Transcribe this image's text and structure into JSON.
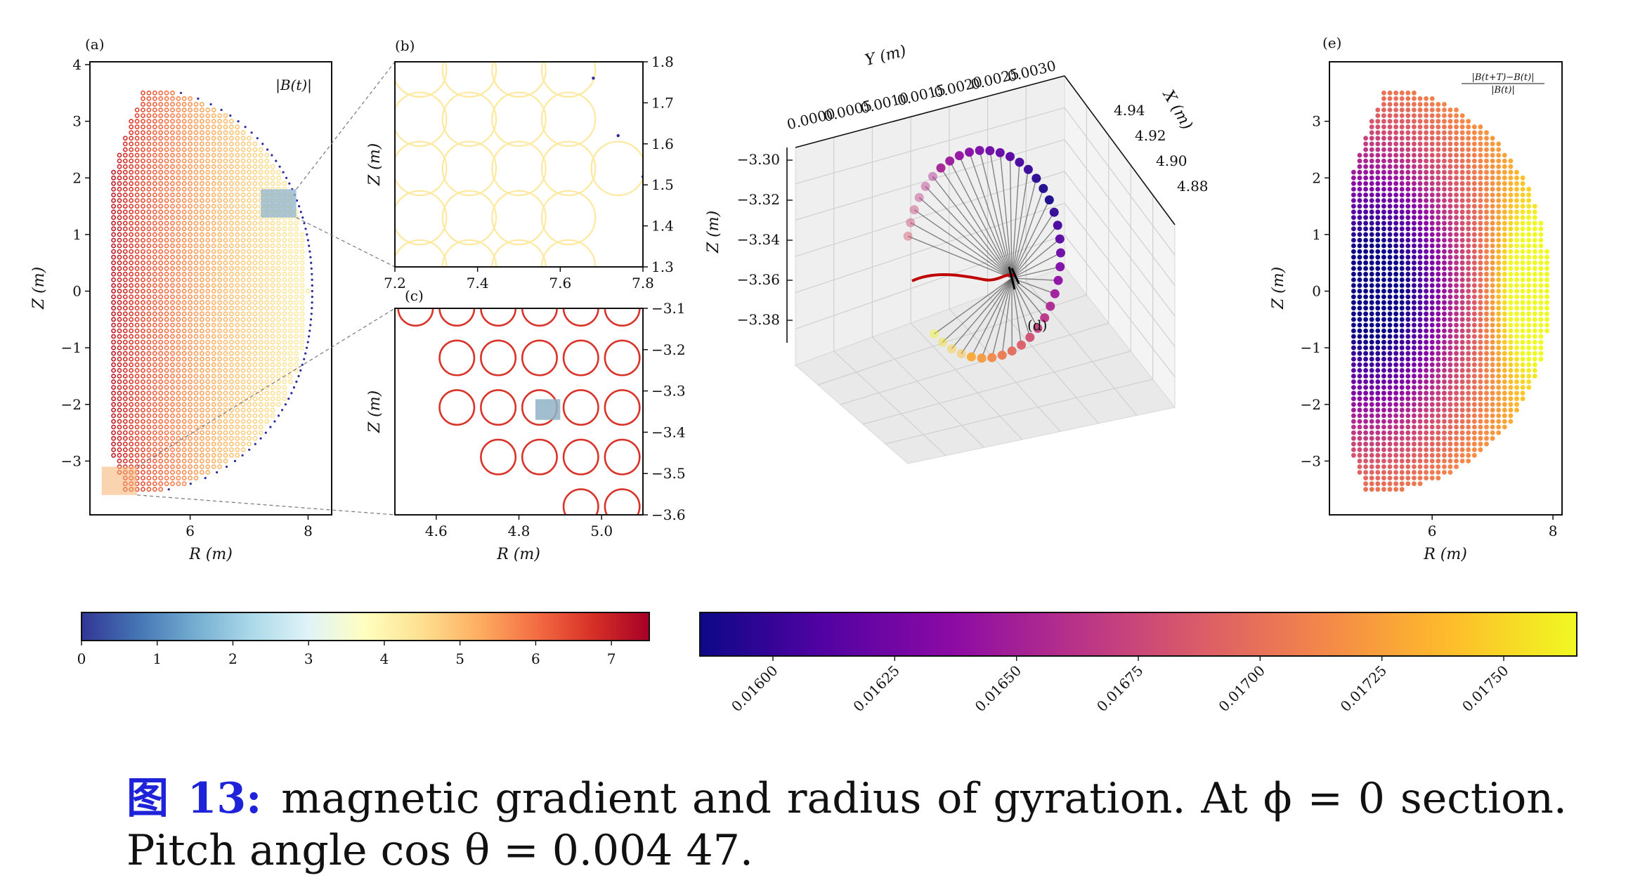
{
  "caption": {
    "label": "图 13:",
    "text": "magnetic gradient and radius of gyration. At ϕ = 0 section. Pitch angle cos θ = 0.004 47."
  },
  "colors": {
    "rdylbu_r": [
      "#313695",
      "#4575b4",
      "#74add1",
      "#abd9e9",
      "#e0f3f8",
      "#ffffbf",
      "#fee090",
      "#fdae61",
      "#f46d43",
      "#d73027",
      "#a50026"
    ],
    "plasma": [
      "#0d0887",
      "#5302a3",
      "#8b0aa5",
      "#b83289",
      "#db5c68",
      "#f48849",
      "#febd2a",
      "#f0f921"
    ],
    "box_b": "#8fb3c8",
    "box_c": "#f6b57a",
    "orbit_black": "#000000",
    "orbit_red": "#c00000"
  },
  "chart_data": [
    {
      "panel": "a",
      "type": "scatter",
      "annotation": "|B(t)|",
      "xlabel": "R (m)",
      "ylabel": "Z (m)",
      "xlim": [
        4.3,
        8.4
      ],
      "ylim": [
        -3.95,
        4.05
      ],
      "xticks": [
        6,
        8
      ],
      "yticks": [
        -3,
        -2,
        -1,
        0,
        1,
        2,
        3,
        4
      ],
      "colormap": "RdYlBu_r",
      "color_range": [
        0,
        7.5
      ],
      "grid_spacing_m": 0.1,
      "description_values": {
        "r_center": 5.0,
        "shape": "D-shaped cross-section, |B| decreasing with R",
        "B_inner": 7.0,
        "B_outer": 3.8
      },
      "inset_boxes": [
        {
          "name": "b",
          "r": [
            7.2,
            7.8
          ],
          "z": [
            1.3,
            1.8
          ]
        },
        {
          "name": "c",
          "r": [
            4.5,
            5.1
          ],
          "z": [
            -3.6,
            -3.1
          ]
        }
      ]
    },
    {
      "panel": "b",
      "type": "scatter",
      "xlabel": "",
      "ylabel": "Z (m)",
      "xlim": [
        7.2,
        7.8
      ],
      "ylim": [
        1.3,
        1.8
      ],
      "xticks": [
        7.2,
        7.4,
        7.6,
        7.8
      ],
      "yticks": [
        1.3,
        1.4,
        1.5,
        1.6,
        1.7,
        1.8
      ],
      "gyro_circle_radius_m": 0.065,
      "circle_centers": [
        [
          7.26,
          1.78
        ],
        [
          7.38,
          1.78
        ],
        [
          7.5,
          1.78
        ],
        [
          7.62,
          1.78
        ],
        [
          7.26,
          1.66
        ],
        [
          7.38,
          1.66
        ],
        [
          7.5,
          1.66
        ],
        [
          7.62,
          1.66
        ],
        [
          7.26,
          1.54
        ],
        [
          7.38,
          1.54
        ],
        [
          7.5,
          1.54
        ],
        [
          7.62,
          1.54
        ],
        [
          7.74,
          1.54
        ],
        [
          7.26,
          1.42
        ],
        [
          7.38,
          1.42
        ],
        [
          7.5,
          1.42
        ],
        [
          7.62,
          1.42
        ],
        [
          7.26,
          1.3
        ],
        [
          7.38,
          1.3
        ],
        [
          7.5,
          1.3
        ],
        [
          7.62,
          1.3
        ]
      ],
      "stray_points": [
        [
          7.68,
          1.76
        ],
        [
          7.74,
          1.62
        ],
        [
          7.8,
          1.52
        ]
      ],
      "field_value": 4.3
    },
    {
      "panel": "c",
      "type": "scatter",
      "xlabel": "R (m)",
      "ylabel": "Z (m)",
      "xlim": [
        4.5,
        5.1
      ],
      "ylim": [
        -3.6,
        -3.1
      ],
      "xticks": [
        4.6,
        4.8,
        5.0
      ],
      "yticks": [
        -3.1,
        -3.2,
        -3.3,
        -3.4,
        -3.5,
        -3.6
      ],
      "gyro_circle_radius_m": 0.042,
      "circle_centers": [
        [
          4.55,
          -3.1
        ],
        [
          4.65,
          -3.1
        ],
        [
          4.75,
          -3.1
        ],
        [
          4.85,
          -3.1
        ],
        [
          4.95,
          -3.1
        ],
        [
          5.05,
          -3.1
        ],
        [
          4.65,
          -3.22
        ],
        [
          4.75,
          -3.22
        ],
        [
          4.85,
          -3.22
        ],
        [
          4.95,
          -3.22
        ],
        [
          5.05,
          -3.22
        ],
        [
          4.65,
          -3.34
        ],
        [
          4.75,
          -3.34
        ],
        [
          4.85,
          -3.34
        ],
        [
          4.95,
          -3.34
        ],
        [
          5.05,
          -3.34
        ],
        [
          4.75,
          -3.46
        ],
        [
          4.85,
          -3.46
        ],
        [
          4.95,
          -3.46
        ],
        [
          5.05,
          -3.46
        ],
        [
          4.95,
          -3.58
        ],
        [
          5.05,
          -3.58
        ]
      ],
      "highlight_box": {
        "r": [
          4.84,
          4.9
        ],
        "z": [
          -3.37,
          -3.32
        ]
      },
      "field_value": 6.7
    },
    {
      "panel": "d",
      "type": "line",
      "projection": "3d",
      "xlabel": "X (m)",
      "ylabel": "Y (m)",
      "zlabel": "Z (m)",
      "x_ticks": [
        4.94,
        4.92,
        4.9,
        4.88
      ],
      "y_ticks": [
        "0.0000",
        "0.0005",
        "0.0010",
        "0.0015",
        "0.0020",
        "0.0025",
        "0.0030"
      ],
      "z_ticks": [
        -3.3,
        -3.32,
        -3.34,
        -3.36,
        -3.38
      ],
      "gyro_points": 40,
      "colormap": "plasma",
      "marker_color_range": [
        0.01585,
        0.01765
      ]
    },
    {
      "panel": "e",
      "type": "scatter",
      "annotation": "(|B(t+T)−B(t)|)/|B(t)|",
      "xlabel": "R (m)",
      "ylabel": "Z (m)",
      "xlim": [
        4.3,
        8.15
      ],
      "ylim": [
        -3.95,
        4.05
      ],
      "xticks": [
        6,
        8
      ],
      "yticks": [
        -3,
        -2,
        -1,
        0,
        1,
        2,
        3
      ],
      "colormap": "plasma",
      "color_range": [
        0.01585,
        0.01765
      ],
      "description_values": {
        "minimum_at": [
          5.0,
          0.0
        ],
        "maximum_at": [
          7.6,
          0.0
        ]
      }
    },
    {
      "panel": "colorbar-1",
      "type": "heatmap",
      "colormap": "RdYlBu_r",
      "range": [
        0,
        7.5
      ],
      "ticks": [
        "0",
        "1",
        "2",
        "3",
        "4",
        "5",
        "6",
        "7"
      ]
    },
    {
      "panel": "colorbar-2",
      "type": "heatmap",
      "colormap": "plasma",
      "range": [
        0.01585,
        0.01765
      ],
      "ticks": [
        "0.01600",
        "0.01625",
        "0.01650",
        "0.01675",
        "0.01700",
        "0.01725",
        "0.01750"
      ]
    }
  ],
  "panel_labels": {
    "a": "(a)",
    "b": "(b)",
    "c": "(c)",
    "d": "(d)",
    "e": "(e)"
  },
  "labels": {
    "a_annot": "|B(t)|",
    "e_annot_num": "|B(t+T)−B(t)|",
    "e_annot_den": "|B(t)|",
    "R": "R (m)",
    "Z": "Z (m)",
    "X": "X (m)",
    "Y": "Y (m)"
  }
}
